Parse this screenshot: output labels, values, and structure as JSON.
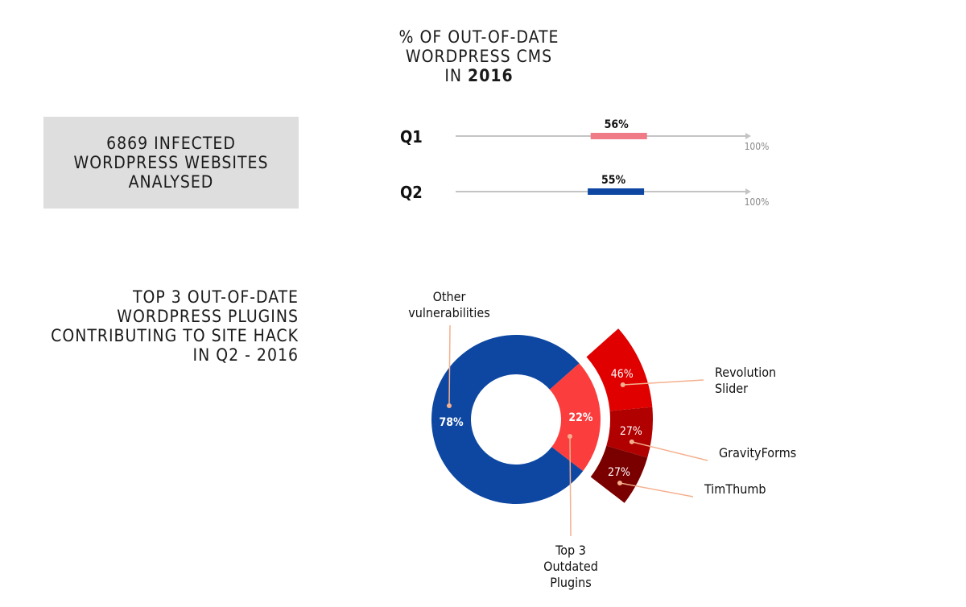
{
  "infected_box": {
    "text": "6869 INFECTED\nWORDPRESS WEBSITES\nANALYSED"
  },
  "out_of_date_title": {
    "line1": "% OF OUT-OF-DATE",
    "line2": "WORDPRESS CMS",
    "line3_prefix": "IN ",
    "line3_year": "2016"
  },
  "plugins_title": {
    "text": "TOP 3 OUT-OF-DATE\nWORDPRESS PLUGINS\nCONTRIBUTING TO SITE HACK\nIN Q2 - 2016"
  },
  "chart_data": [
    {
      "type": "bar",
      "orientation": "horizontal",
      "categories": [
        "Q1",
        "Q2"
      ],
      "values": [
        56,
        55
      ],
      "value_labels": [
        "56%",
        "55%"
      ],
      "axis_end_label": "100%",
      "xlim": [
        0,
        100
      ],
      "colors": [
        "#f07b87",
        "#0d47a1"
      ]
    },
    {
      "type": "pie",
      "variant": "donut",
      "slices": [
        {
          "label": "Other vulnerabilities",
          "value": 78,
          "value_label": "78%",
          "color": "#0d47a1"
        },
        {
          "label": "Top 3 Outdated Plugins",
          "value": 22,
          "value_label": "22%",
          "color": "#fb3d3d"
        }
      ],
      "breakdown_of": "Top 3 Outdated Plugins",
      "breakdown": [
        {
          "label": "Revolution Slider",
          "value": 46,
          "value_label": "46%",
          "color": "#e00000"
        },
        {
          "label": "GravityForms",
          "value": 27,
          "value_label": "27%",
          "color": "#b00000"
        },
        {
          "label": "TimThumb",
          "value": 27,
          "value_label": "27%",
          "color": "#7a0000"
        }
      ],
      "leader_color": "#f4b08e"
    }
  ]
}
